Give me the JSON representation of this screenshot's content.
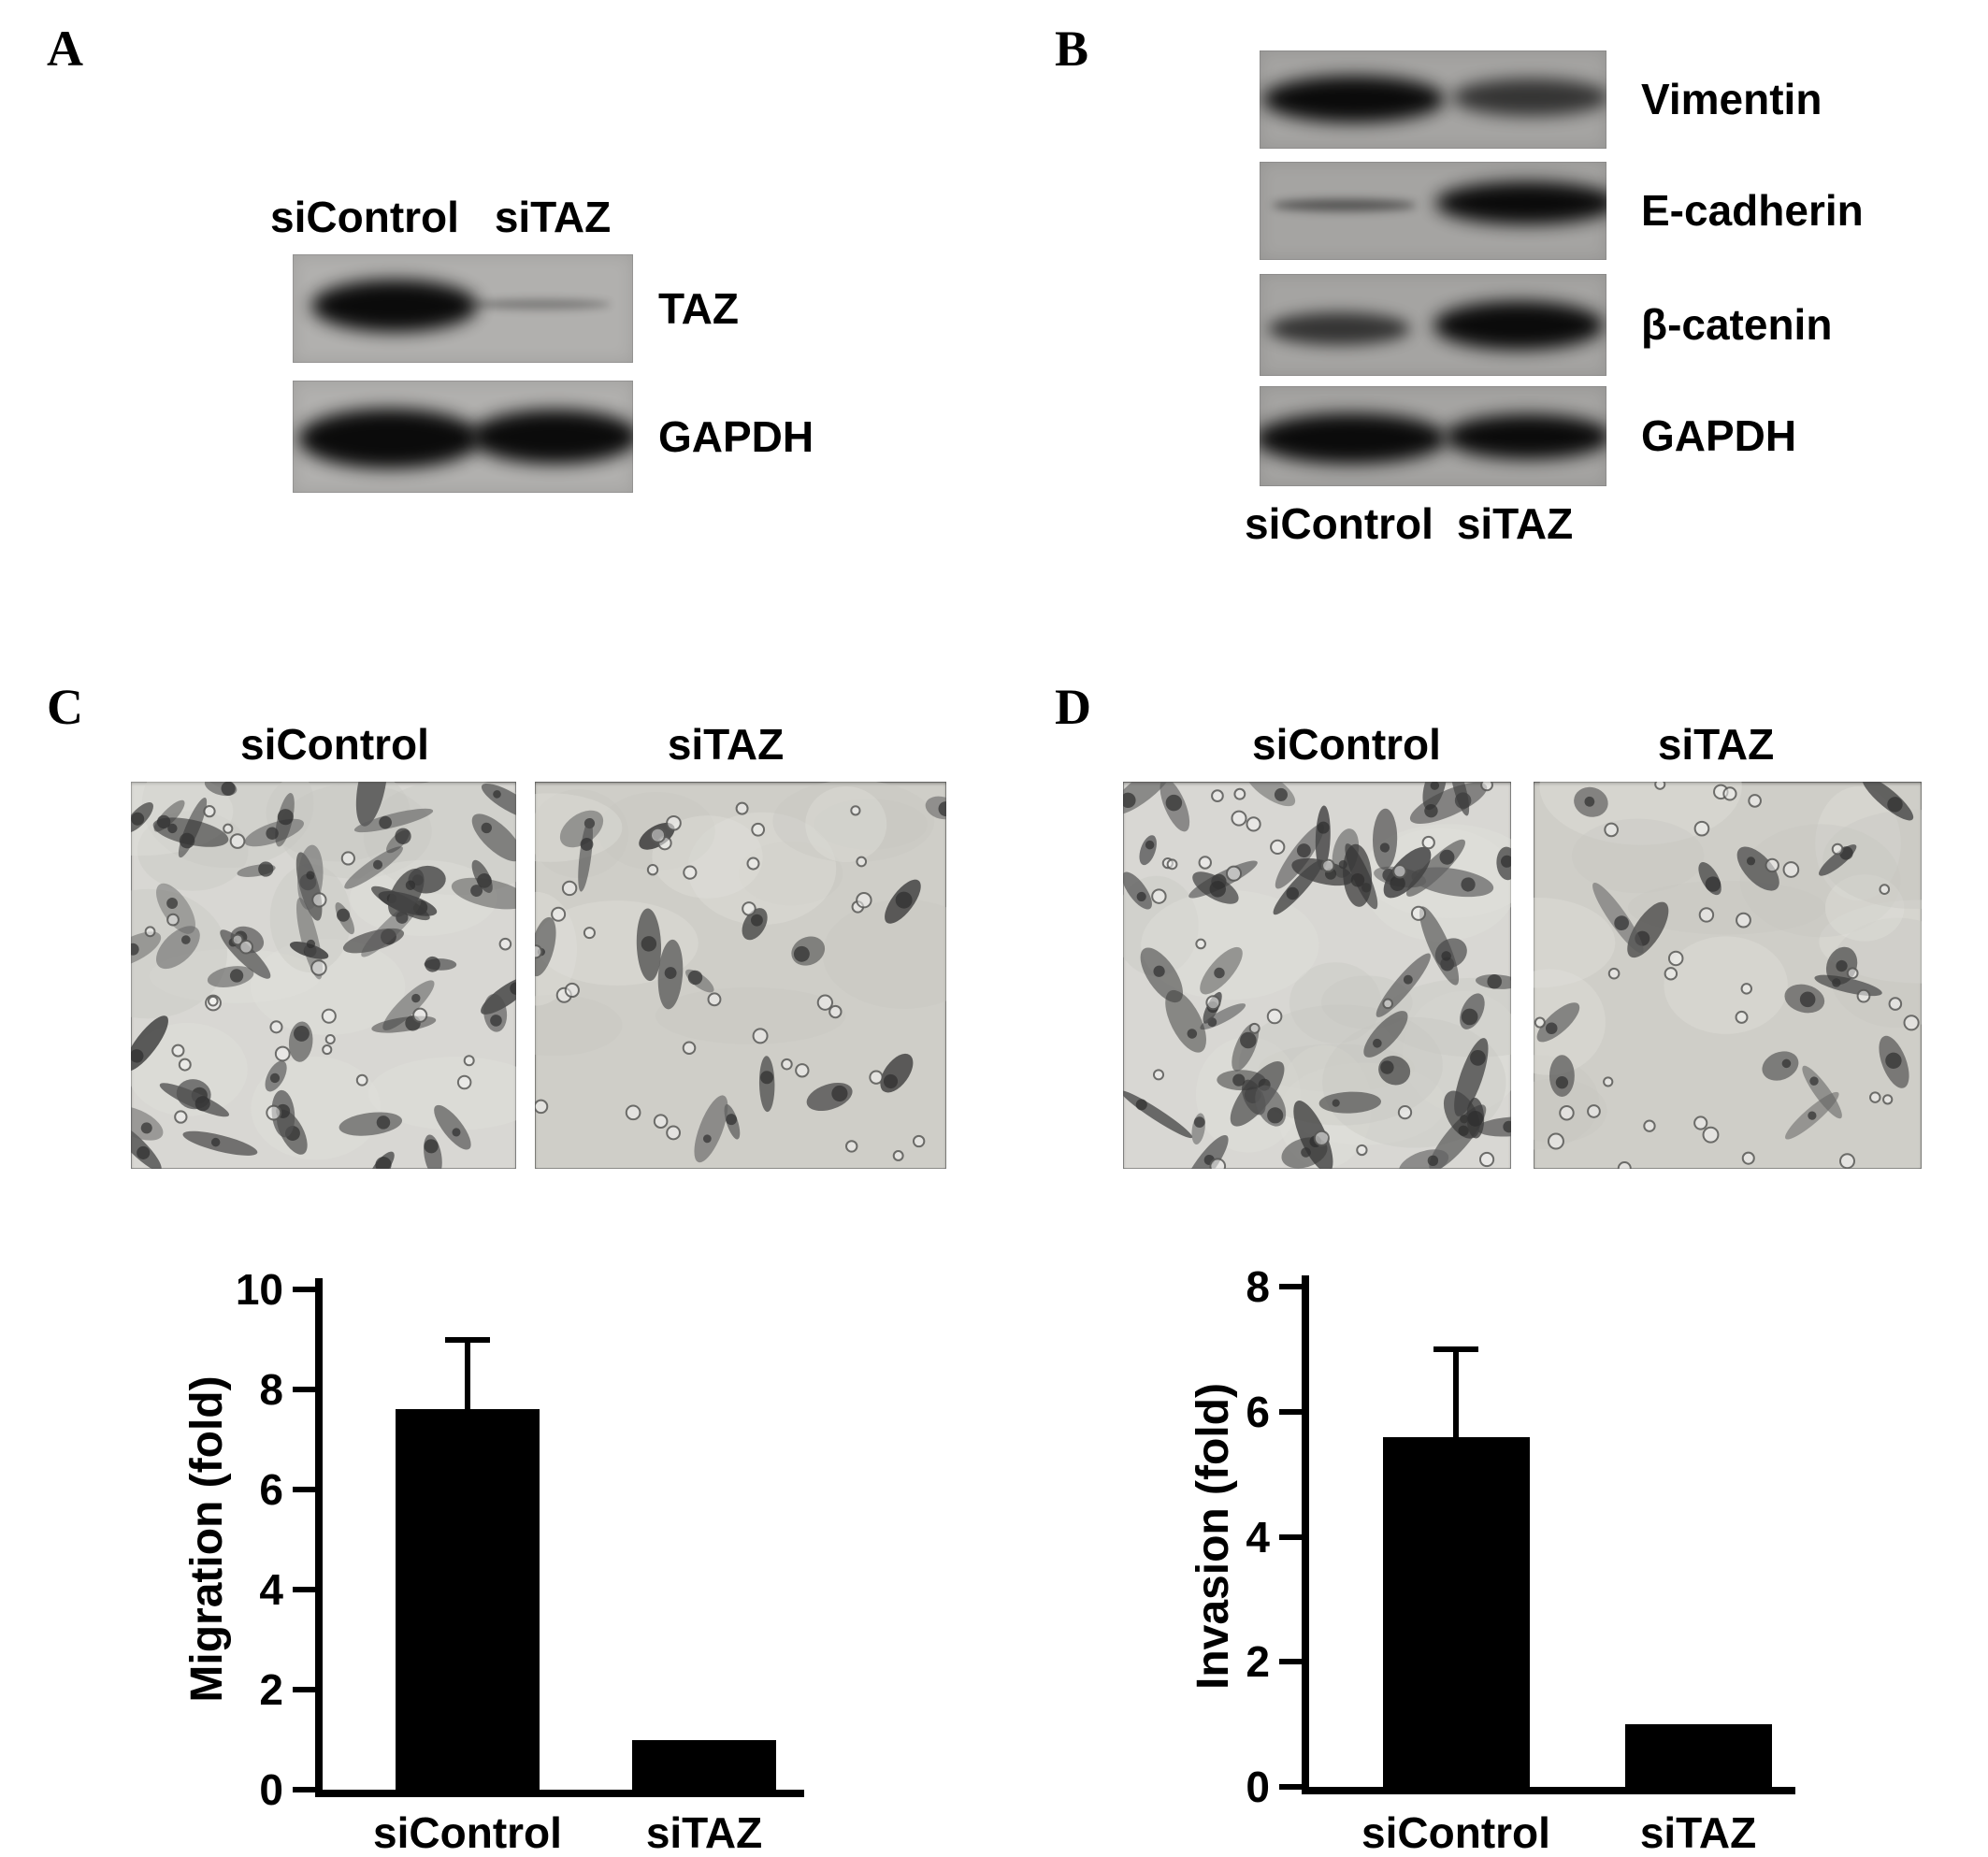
{
  "figure": {
    "panels": [
      {
        "label": "A",
        "type": "western-blot",
        "lane_labels": [
          "siControl",
          "siTAZ"
        ],
        "lane_labels_position": "top",
        "blots": [
          {
            "name": "TAZ",
            "bands": [
              {
                "lane": "siControl",
                "intensity": "strong"
              },
              {
                "lane": "siTAZ",
                "intensity": "very-faint"
              }
            ]
          },
          {
            "name": "GAPDH",
            "bands": [
              {
                "lane": "siControl",
                "intensity": "strong"
              },
              {
                "lane": "siTAZ",
                "intensity": "strong"
              }
            ]
          }
        ]
      },
      {
        "label": "B",
        "type": "western-blot",
        "lane_labels": [
          "siControl",
          "siTAZ"
        ],
        "lane_labels_position": "bottom",
        "blots": [
          {
            "name": "Vimentin",
            "bands": [
              {
                "lane": "siControl",
                "intensity": "strong"
              },
              {
                "lane": "siTAZ",
                "intensity": "medium"
              }
            ]
          },
          {
            "name": "E-cadherin",
            "bands": [
              {
                "lane": "siControl",
                "intensity": "faint"
              },
              {
                "lane": "siTAZ",
                "intensity": "strong"
              }
            ]
          },
          {
            "name": "β-catenin",
            "bands": [
              {
                "lane": "siControl",
                "intensity": "medium"
              },
              {
                "lane": "siTAZ",
                "intensity": "strong"
              }
            ]
          },
          {
            "name": "GAPDH",
            "bands": [
              {
                "lane": "siControl",
                "intensity": "strong"
              },
              {
                "lane": "siTAZ",
                "intensity": "strong"
              }
            ]
          }
        ]
      },
      {
        "label": "C",
        "type": "micrograph-and-chart",
        "images": [
          {
            "label": "siControl",
            "cell_density": "dense"
          },
          {
            "label": "siTAZ",
            "cell_density": "sparse"
          }
        ]
      },
      {
        "label": "D",
        "type": "micrograph-and-chart",
        "images": [
          {
            "label": "siControl",
            "cell_density": "dense"
          },
          {
            "label": "siTAZ",
            "cell_density": "sparse"
          }
        ]
      }
    ]
  },
  "chart_data": [
    {
      "type": "bar",
      "panel": "C",
      "categories": [
        "siControl",
        "siTAZ"
      ],
      "values": [
        7.6,
        1.0
      ],
      "errors_plus": [
        1.4,
        0
      ],
      "title": "",
      "xlabel": "",
      "ylabel": "Migration (fold)",
      "ylim": [
        0,
        10
      ],
      "yticks": [
        0,
        2,
        4,
        6,
        8,
        10
      ],
      "bar_color": "#000000",
      "grid": false,
      "legend": "none"
    },
    {
      "type": "bar",
      "panel": "D",
      "categories": [
        "siControl",
        "siTAZ"
      ],
      "values": [
        5.6,
        1.0
      ],
      "errors_plus": [
        1.4,
        0
      ],
      "title": "",
      "xlabel": "",
      "ylabel": "Invasion (fold)",
      "ylim": [
        0,
        8
      ],
      "yticks": [
        0,
        2,
        4,
        6,
        8
      ],
      "bar_color": "#000000",
      "grid": false,
      "legend": "none"
    }
  ],
  "colors": {
    "background": "#ffffff",
    "text": "#000000",
    "blot_bg_panel_a": "#b1b0ae",
    "blot_bg_panel_b": "#a5a4a2",
    "micrograph_bg_dense": "#d8d7d3",
    "micrograph_bg_sparse": "#cfcec8",
    "band": "#050505"
  }
}
